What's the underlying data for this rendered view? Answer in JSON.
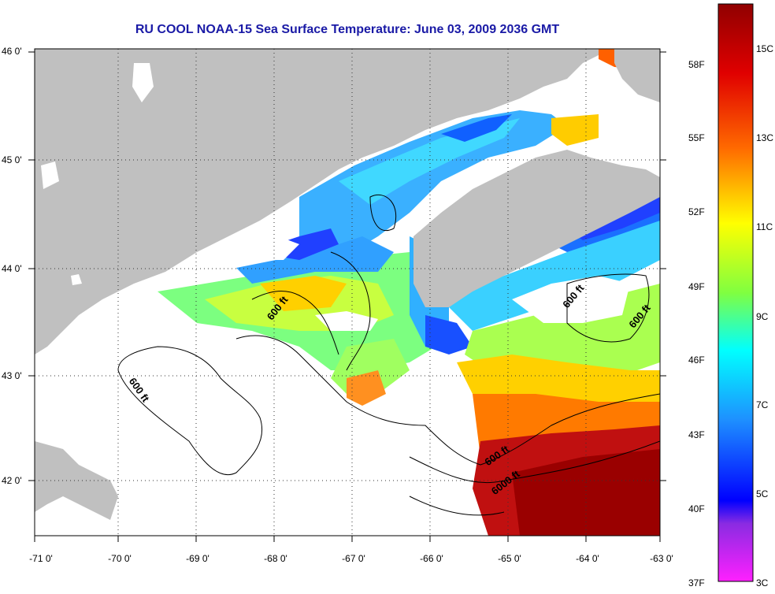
{
  "title": "RU COOL  NOAA-15  Sea Surface Temperature:  June 03, 2009 2036 GMT",
  "y_axis_labels": [
    "46 0'",
    "45 0'",
    "44 0'",
    "43 0'",
    "42 0'"
  ],
  "x_axis_labels": [
    "-71 0'",
    "-70 0'",
    "-69 0'",
    "-68 0'",
    "-67 0'",
    "-66 0'",
    "-65 0'",
    "-64 0'",
    "-63 0'"
  ],
  "contour_labels": [
    "600 ft",
    "600 ft",
    "600 ft",
    "600 ft",
    "600 ft",
    "6000 ft"
  ],
  "colorbar": {
    "fahrenheit": [
      "58F",
      "55F",
      "52F",
      "49F",
      "46F",
      "43F",
      "40F",
      "37F"
    ],
    "celsius": [
      "15C",
      "13C",
      "11C",
      "9C",
      "7C",
      "5C",
      "3C"
    ],
    "colors": [
      "#a00000",
      "#ff2000",
      "#ff8000",
      "#ffff00",
      "#80ff40",
      "#00ffff",
      "#2080ff",
      "#0000ff",
      "#8020c0",
      "#ff00ff"
    ]
  },
  "colors": {
    "land": "#c0c0c0",
    "no_data": "#ffffff",
    "title": "#1a1aa6"
  }
}
